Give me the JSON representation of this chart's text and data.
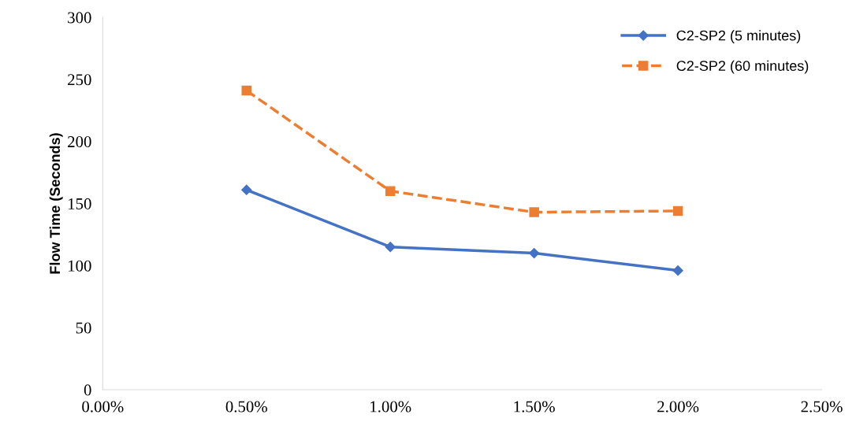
{
  "chart_data": {
    "type": "line",
    "ylabel": "Flow Time (Seconds)",
    "x": [
      0.5,
      1.0,
      1.5,
      2.0
    ],
    "series": [
      {
        "name": "C2-SP2 (5 minutes)",
        "color": "#4472c4",
        "values": [
          161,
          115,
          110,
          96
        ],
        "marker": "diamond",
        "line_style": "solid"
      },
      {
        "name": "C2-SP2 (60 minutes)",
        "color": "#ed7d31",
        "values": [
          241,
          160,
          143,
          144
        ],
        "marker": "square",
        "line_style": "dashed"
      }
    ],
    "xlim": [
      0,
      2.5
    ],
    "xticks": [
      {
        "value": 0,
        "label": "0.00%"
      },
      {
        "value": 0.5,
        "label": "0.50%"
      },
      {
        "value": 1.0,
        "label": "1.00%"
      },
      {
        "value": 1.5,
        "label": "1.50%"
      },
      {
        "value": 2.0,
        "label": "2.00%"
      },
      {
        "value": 2.5,
        "label": "2.50%"
      }
    ],
    "ylim": [
      0,
      300
    ],
    "yticks": [
      0,
      50,
      100,
      150,
      200,
      250,
      300
    ],
    "grid": false,
    "legend": "top right"
  }
}
